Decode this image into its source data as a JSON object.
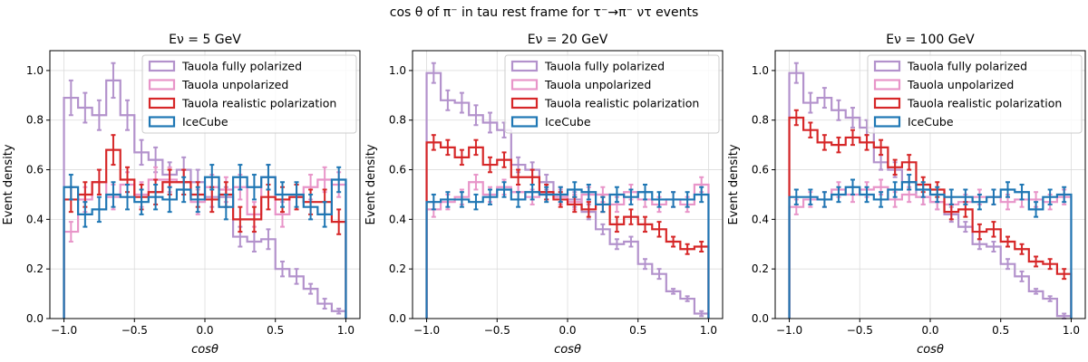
{
  "figure": {
    "suptitle": "cos θ of π⁻ in tau rest frame for τ⁻→π⁻ ντ events"
  },
  "chart_data": [
    {
      "type": "step-histogram",
      "title": "Eν = 5 GeV",
      "xlabel": "cosθ",
      "ylabel": "Event density",
      "xlim": [
        -1.1,
        1.1
      ],
      "ylim": [
        0,
        1.08
      ],
      "xticks": [
        -1.0,
        -0.5,
        0.0,
        0.5,
        1.0
      ],
      "xtick_labels": [
        "−1.0",
        "−0.5",
        "0.0",
        "0.5",
        "1.0"
      ],
      "yticks": [
        0.0,
        0.2,
        0.4,
        0.6,
        0.8,
        1.0
      ],
      "ytick_labels": [
        "0.0",
        "0.2",
        "0.4",
        "0.6",
        "0.8",
        "1.0"
      ],
      "grid": true,
      "legend": "top-right",
      "bin_edges": [
        -1.0,
        -0.9,
        -0.8,
        -0.7,
        -0.6,
        -0.5,
        -0.4,
        -0.3,
        -0.2,
        -0.1,
        0.0,
        0.1,
        0.2,
        0.3,
        0.4,
        0.5,
        0.6,
        0.7,
        0.8,
        0.9,
        1.0
      ],
      "series": [
        {
          "name": "Tauola fully polarized",
          "color": "#b392cc",
          "values": [
            0.89,
            0.85,
            0.82,
            0.96,
            0.82,
            0.67,
            0.64,
            0.58,
            0.6,
            0.55,
            0.49,
            0.49,
            0.33,
            0.31,
            0.32,
            0.2,
            0.17,
            0.12,
            0.06,
            0.03
          ],
          "errors": [
            0.07,
            0.06,
            0.06,
            0.07,
            0.06,
            0.05,
            0.05,
            0.05,
            0.05,
            0.05,
            0.04,
            0.04,
            0.04,
            0.04,
            0.04,
            0.03,
            0.03,
            0.02,
            0.02,
            0.01
          ]
        },
        {
          "name": "Tauola unpolarized",
          "color": "#e895c9",
          "values": [
            0.35,
            0.48,
            0.55,
            0.49,
            0.54,
            0.5,
            0.56,
            0.56,
            0.55,
            0.47,
            0.53,
            0.52,
            0.53,
            0.42,
            0.57,
            0.42,
            0.49,
            0.53,
            0.56,
            0.54
          ],
          "errors": [
            0.04,
            0.05,
            0.05,
            0.05,
            0.05,
            0.05,
            0.05,
            0.05,
            0.05,
            0.05,
            0.05,
            0.05,
            0.05,
            0.05,
            0.05,
            0.05,
            0.05,
            0.05,
            0.05,
            0.05
          ]
        },
        {
          "name": "Tauola realistic polarization",
          "color": "#d62728",
          "values": [
            0.48,
            0.5,
            0.55,
            0.68,
            0.56,
            0.49,
            0.51,
            0.55,
            0.55,
            0.5,
            0.48,
            0.5,
            0.4,
            0.4,
            0.49,
            0.48,
            0.49,
            0.47,
            0.47,
            0.39
          ],
          "errors": [
            0.05,
            0.05,
            0.05,
            0.06,
            0.05,
            0.05,
            0.05,
            0.05,
            0.05,
            0.05,
            0.05,
            0.05,
            0.05,
            0.05,
            0.05,
            0.05,
            0.05,
            0.05,
            0.05,
            0.05
          ]
        },
        {
          "name": "IceCube",
          "color": "#1f77b4",
          "values": [
            0.53,
            0.42,
            0.44,
            0.5,
            0.49,
            0.47,
            0.49,
            0.48,
            0.52,
            0.48,
            0.57,
            0.45,
            0.57,
            0.53,
            0.57,
            0.5,
            0.5,
            0.45,
            0.42,
            0.56
          ],
          "errors": [
            0.05,
            0.05,
            0.05,
            0.05,
            0.05,
            0.05,
            0.05,
            0.05,
            0.05,
            0.05,
            0.05,
            0.05,
            0.05,
            0.05,
            0.05,
            0.05,
            0.05,
            0.05,
            0.05,
            0.05
          ]
        }
      ]
    },
    {
      "type": "step-histogram",
      "title": "Eν = 20 GeV",
      "xlabel": "cosθ",
      "ylabel": "Event density",
      "xlim": [
        -1.1,
        1.1
      ],
      "ylim": [
        0,
        1.08
      ],
      "xticks": [
        -1.0,
        -0.5,
        0.0,
        0.5,
        1.0
      ],
      "xtick_labels": [
        "−1.0",
        "−0.5",
        "0.0",
        "0.5",
        "1.0"
      ],
      "yticks": [
        0.0,
        0.2,
        0.4,
        0.6,
        0.8,
        1.0
      ],
      "ytick_labels": [
        "0.0",
        "0.2",
        "0.4",
        "0.6",
        "0.8",
        "1.0"
      ],
      "grid": true,
      "legend": "top-right",
      "bin_edges": [
        -1.0,
        -0.9,
        -0.8,
        -0.7,
        -0.6,
        -0.5,
        -0.4,
        -0.3,
        -0.2,
        -0.1,
        0.0,
        0.1,
        0.2,
        0.3,
        0.4,
        0.5,
        0.6,
        0.7,
        0.8,
        0.9,
        1.0
      ],
      "series": [
        {
          "name": "Tauola fully polarized",
          "color": "#b392cc",
          "values": [
            0.99,
            0.88,
            0.87,
            0.82,
            0.79,
            0.76,
            0.62,
            0.6,
            0.55,
            0.5,
            0.48,
            0.43,
            0.36,
            0.3,
            0.31,
            0.22,
            0.18,
            0.11,
            0.08,
            0.02
          ],
          "errors": [
            0.04,
            0.04,
            0.04,
            0.04,
            0.04,
            0.03,
            0.03,
            0.03,
            0.03,
            0.03,
            0.03,
            0.03,
            0.02,
            0.02,
            0.02,
            0.02,
            0.02,
            0.01,
            0.01,
            0.01
          ]
        },
        {
          "name": "Tauola unpolarized",
          "color": "#e895c9",
          "values": [
            0.44,
            0.47,
            0.49,
            0.55,
            0.5,
            0.53,
            0.51,
            0.49,
            0.51,
            0.49,
            0.47,
            0.5,
            0.5,
            0.46,
            0.51,
            0.48,
            0.46,
            0.48,
            0.46,
            0.54
          ],
          "errors": [
            0.03,
            0.03,
            0.03,
            0.03,
            0.03,
            0.03,
            0.03,
            0.03,
            0.03,
            0.03,
            0.03,
            0.03,
            0.03,
            0.03,
            0.03,
            0.03,
            0.03,
            0.03,
            0.03,
            0.03
          ]
        },
        {
          "name": "Tauola realistic polarization",
          "color": "#d62728",
          "values": [
            0.71,
            0.69,
            0.65,
            0.69,
            0.62,
            0.64,
            0.57,
            0.57,
            0.51,
            0.48,
            0.46,
            0.44,
            0.46,
            0.38,
            0.41,
            0.38,
            0.36,
            0.31,
            0.28,
            0.29
          ],
          "errors": [
            0.03,
            0.03,
            0.03,
            0.03,
            0.03,
            0.03,
            0.03,
            0.03,
            0.03,
            0.03,
            0.03,
            0.03,
            0.03,
            0.03,
            0.03,
            0.03,
            0.03,
            0.02,
            0.02,
            0.02
          ]
        },
        {
          "name": "IceCube",
          "color": "#1f77b4",
          "values": [
            0.47,
            0.48,
            0.48,
            0.47,
            0.49,
            0.52,
            0.48,
            0.51,
            0.5,
            0.5,
            0.52,
            0.51,
            0.46,
            0.5,
            0.49,
            0.51,
            0.48,
            0.48,
            0.48,
            0.5
          ],
          "errors": [
            0.03,
            0.03,
            0.03,
            0.03,
            0.03,
            0.03,
            0.03,
            0.03,
            0.03,
            0.03,
            0.03,
            0.03,
            0.03,
            0.03,
            0.03,
            0.03,
            0.03,
            0.03,
            0.03,
            0.03
          ]
        }
      ]
    },
    {
      "type": "step-histogram",
      "title": "Eν = 100 GeV",
      "xlabel": "cosθ",
      "ylabel": "Event density",
      "xlim": [
        -1.1,
        1.1
      ],
      "ylim": [
        0,
        1.08
      ],
      "xticks": [
        -1.0,
        -0.5,
        0.0,
        0.5,
        1.0
      ],
      "xtick_labels": [
        "−1.0",
        "−0.5",
        "0.0",
        "0.5",
        "1.0"
      ],
      "yticks": [
        0.0,
        0.2,
        0.4,
        0.6,
        0.8,
        1.0
      ],
      "ytick_labels": [
        "0.0",
        "0.2",
        "0.4",
        "0.6",
        "0.8",
        "1.0"
      ],
      "grid": true,
      "legend": "top-right",
      "bin_edges": [
        -1.0,
        -0.9,
        -0.8,
        -0.7,
        -0.6,
        -0.5,
        -0.4,
        -0.3,
        -0.2,
        -0.1,
        0.0,
        0.1,
        0.2,
        0.3,
        0.4,
        0.5,
        0.6,
        0.7,
        0.8,
        0.9,
        1.0
      ],
      "series": [
        {
          "name": "Tauola fully polarized",
          "color": "#b392cc",
          "values": [
            0.99,
            0.87,
            0.89,
            0.84,
            0.81,
            0.77,
            0.63,
            0.6,
            0.55,
            0.49,
            0.47,
            0.42,
            0.37,
            0.3,
            0.29,
            0.22,
            0.17,
            0.11,
            0.08,
            0.01
          ],
          "errors": [
            0.04,
            0.04,
            0.04,
            0.04,
            0.04,
            0.03,
            0.03,
            0.03,
            0.03,
            0.03,
            0.03,
            0.03,
            0.02,
            0.02,
            0.02,
            0.02,
            0.02,
            0.01,
            0.01,
            0.01
          ]
        },
        {
          "name": "Tauola unpolarized",
          "color": "#e895c9",
          "values": [
            0.45,
            0.48,
            0.48,
            0.52,
            0.5,
            0.52,
            0.53,
            0.48,
            0.5,
            0.49,
            0.47,
            0.46,
            0.47,
            0.49,
            0.49,
            0.47,
            0.48,
            0.48,
            0.47,
            0.49
          ],
          "errors": [
            0.03,
            0.03,
            0.03,
            0.03,
            0.03,
            0.03,
            0.03,
            0.03,
            0.03,
            0.03,
            0.03,
            0.03,
            0.03,
            0.03,
            0.03,
            0.03,
            0.03,
            0.03,
            0.03,
            0.03
          ]
        },
        {
          "name": "Tauola realistic polarization",
          "color": "#d62728",
          "values": [
            0.81,
            0.76,
            0.71,
            0.7,
            0.73,
            0.71,
            0.69,
            0.61,
            0.63,
            0.54,
            0.52,
            0.43,
            0.44,
            0.35,
            0.36,
            0.31,
            0.28,
            0.23,
            0.22,
            0.18
          ],
          "errors": [
            0.03,
            0.03,
            0.03,
            0.03,
            0.03,
            0.03,
            0.03,
            0.03,
            0.03,
            0.03,
            0.03,
            0.03,
            0.03,
            0.03,
            0.03,
            0.02,
            0.02,
            0.02,
            0.02,
            0.02
          ]
        },
        {
          "name": "IceCube",
          "color": "#1f77b4",
          "values": [
            0.49,
            0.49,
            0.48,
            0.5,
            0.53,
            0.5,
            0.48,
            0.52,
            0.55,
            0.52,
            0.5,
            0.49,
            0.49,
            0.47,
            0.49,
            0.52,
            0.51,
            0.44,
            0.49,
            0.5
          ],
          "errors": [
            0.03,
            0.03,
            0.03,
            0.03,
            0.03,
            0.03,
            0.03,
            0.03,
            0.03,
            0.03,
            0.03,
            0.03,
            0.03,
            0.03,
            0.03,
            0.03,
            0.03,
            0.03,
            0.03,
            0.03
          ]
        }
      ]
    }
  ]
}
